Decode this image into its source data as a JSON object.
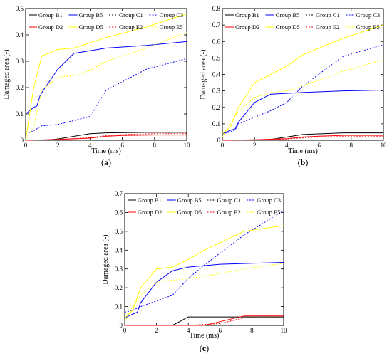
{
  "chart_data": [
    {
      "type": "line",
      "panel_label_open": "(",
      "panel_letter": "a",
      "panel_label_close": ")",
      "xlabel": "Time (ms)",
      "ylabel": "Damaged area (-)",
      "xlim": [
        0,
        10
      ],
      "ylim": [
        0,
        0.5
      ],
      "xticks": [
        0,
        2,
        4,
        6,
        8,
        10
      ],
      "yticks": [
        0,
        0.1,
        0.2,
        0.3,
        0.4,
        0.5
      ],
      "legend_position": "top",
      "series": [
        {
          "name": "Group B1",
          "color": "#000000",
          "dash": "solid",
          "x": [
            0,
            0.5,
            1,
            2,
            3,
            4,
            5,
            7.5,
            10
          ],
          "y": [
            0,
            0,
            0,
            0.005,
            0.015,
            0.025,
            0.028,
            0.03,
            0.03
          ]
        },
        {
          "name": "Group B5",
          "color": "#0000ff",
          "dash": "solid",
          "x": [
            0,
            0.3,
            0.5,
            0.7,
            0.9,
            1.1,
            2,
            3,
            5,
            7.5,
            10
          ],
          "y": [
            0.1,
            0.115,
            0.125,
            0.13,
            0.17,
            0.19,
            0.27,
            0.33,
            0.35,
            0.36,
            0.375
          ]
        },
        {
          "name": "Group C1",
          "color": "#000000",
          "dash": "dotted",
          "x": [
            0,
            2,
            4,
            6,
            8,
            10
          ],
          "y": [
            0,
            0,
            0,
            0,
            0,
            0
          ]
        },
        {
          "name": "Group C3",
          "color": "#0000ff",
          "dash": "dotted",
          "x": [
            0,
            0.3,
            0.6,
            1,
            2,
            3,
            4,
            5,
            7.5,
            10
          ],
          "y": [
            0.03,
            0.03,
            0.04,
            0.055,
            0.06,
            0.075,
            0.09,
            0.19,
            0.27,
            0.31
          ]
        },
        {
          "name": "Group D2",
          "color": "#ff0000",
          "dash": "solid",
          "x": [
            0,
            2,
            4,
            5,
            6,
            8,
            10
          ],
          "y": [
            0,
            0.003,
            0.008,
            0.015,
            0.018,
            0.02,
            0.02
          ]
        },
        {
          "name": "Group D5",
          "color": "#ffff00",
          "dash": "solid",
          "x": [
            0,
            0.5,
            1,
            2,
            3,
            5,
            7.5,
            10
          ],
          "y": [
            0,
            0.2,
            0.32,
            0.345,
            0.35,
            0.39,
            0.43,
            0.48
          ]
        },
        {
          "name": "Group E2",
          "color": "#ff0000",
          "dash": "dotted",
          "x": [
            0,
            2,
            4,
            5,
            6,
            8,
            10
          ],
          "y": [
            0,
            0.003,
            0.01,
            0.018,
            0.022,
            0.025,
            0.025
          ]
        },
        {
          "name": "Group E5",
          "color": "#ffff00",
          "dash": "dotted",
          "x": [
            0,
            0.5,
            1,
            2,
            3,
            4,
            5,
            7.5,
            10
          ],
          "y": [
            0,
            0.05,
            0.19,
            0.24,
            0.245,
            0.265,
            0.3,
            0.35,
            0.41
          ]
        }
      ]
    },
    {
      "type": "line",
      "panel_label_open": "(",
      "panel_letter": "b",
      "panel_label_close": ")",
      "xlabel": "Time (ms)",
      "ylabel": "Damaged area (-)",
      "xlim": [
        0,
        10
      ],
      "ylim": [
        0,
        0.8
      ],
      "xticks": [
        0,
        2,
        4,
        6,
        8,
        10
      ],
      "yticks": [
        0,
        0.1,
        0.2,
        0.3,
        0.4,
        0.5,
        0.6,
        0.7,
        0.8
      ],
      "legend_position": "top",
      "series": [
        {
          "name": "Group B1",
          "color": "#000000",
          "dash": "solid",
          "x": [
            0,
            1,
            2,
            3,
            4,
            5,
            7.5,
            10
          ],
          "y": [
            0,
            0,
            0,
            0.005,
            0.02,
            0.035,
            0.045,
            0.045
          ]
        },
        {
          "name": "Group B5",
          "color": "#0000ff",
          "dash": "solid",
          "x": [
            0,
            0.5,
            0.8,
            1,
            2,
            3,
            5,
            7.5,
            10
          ],
          "y": [
            0.04,
            0.06,
            0.07,
            0.11,
            0.23,
            0.28,
            0.29,
            0.3,
            0.305
          ]
        },
        {
          "name": "Group C1",
          "color": "#000000",
          "dash": "dotted",
          "x": [
            0,
            2,
            4,
            6,
            8,
            10
          ],
          "y": [
            0,
            0,
            0,
            0,
            0,
            0
          ]
        },
        {
          "name": "Group C3",
          "color": "#0000ff",
          "dash": "dotted",
          "x": [
            0,
            0.5,
            0.8,
            1,
            2,
            3,
            4,
            5,
            7.5,
            10
          ],
          "y": [
            0.04,
            0.05,
            0.065,
            0.1,
            0.14,
            0.18,
            0.23,
            0.33,
            0.51,
            0.58
          ]
        },
        {
          "name": "Group D2",
          "color": "#ff0000",
          "dash": "solid",
          "x": [
            0,
            2,
            4,
            5,
            6,
            7.5,
            10
          ],
          "y": [
            0,
            0.003,
            0.01,
            0.02,
            0.025,
            0.03,
            0.03
          ]
        },
        {
          "name": "Group D5",
          "color": "#ffff00",
          "dash": "solid",
          "x": [
            0,
            0.5,
            1,
            2,
            3,
            4,
            5,
            7.5,
            10
          ],
          "y": [
            0.04,
            0.08,
            0.2,
            0.35,
            0.4,
            0.45,
            0.52,
            0.62,
            0.7
          ]
        },
        {
          "name": "Group E2",
          "color": "#ff0000",
          "dash": "dotted",
          "x": [
            0,
            2,
            4,
            5,
            6,
            7.5,
            10
          ],
          "y": [
            0,
            0.002,
            0.008,
            0.015,
            0.02,
            0.022,
            0.022
          ]
        },
        {
          "name": "Group E5",
          "color": "#ffff00",
          "dash": "dotted",
          "x": [
            0,
            0.5,
            1,
            2,
            3,
            4,
            5,
            7.5,
            10
          ],
          "y": [
            0.02,
            0.1,
            0.18,
            0.26,
            0.29,
            0.3,
            0.33,
            0.42,
            0.49
          ]
        }
      ]
    },
    {
      "type": "line",
      "panel_label_open": "(",
      "panel_letter": "c",
      "panel_label_close": ")",
      "xlabel": "Time (ms)",
      "ylabel": "Damaged area (-)",
      "xlim": [
        0,
        10
      ],
      "ylim": [
        0,
        0.7
      ],
      "xticks": [
        0,
        2,
        4,
        6,
        8,
        10
      ],
      "yticks": [
        0,
        0.1,
        0.2,
        0.3,
        0.4,
        0.5,
        0.6,
        0.7
      ],
      "legend_position": "top",
      "series": [
        {
          "name": "Group B1",
          "color": "#000000",
          "dash": "solid",
          "x": [
            0,
            3,
            4,
            6,
            8,
            10
          ],
          "y": [
            0,
            0,
            0.045,
            0.045,
            0.045,
            0.045
          ]
        },
        {
          "name": "Group B5",
          "color": "#0000ff",
          "dash": "solid",
          "x": [
            0,
            0.5,
            0.8,
            1,
            2,
            3,
            4,
            6,
            8,
            10
          ],
          "y": [
            0.04,
            0.06,
            0.07,
            0.12,
            0.23,
            0.29,
            0.31,
            0.325,
            0.33,
            0.335
          ]
        },
        {
          "name": "Group C1",
          "color": "#000000",
          "dash": "dotted",
          "x": [
            0,
            2,
            4,
            6,
            8,
            10
          ],
          "y": [
            0,
            0,
            0,
            0,
            0,
            0
          ]
        },
        {
          "name": "Group C3",
          "color": "#0000ff",
          "dash": "dotted",
          "x": [
            0,
            0.5,
            1,
            2,
            3,
            4,
            5,
            7.5,
            10
          ],
          "y": [
            0.07,
            0.08,
            0.1,
            0.13,
            0.16,
            0.25,
            0.32,
            0.48,
            0.61
          ]
        },
        {
          "name": "Group D2",
          "color": "#ff0000",
          "dash": "solid",
          "x": [
            0,
            5,
            6,
            7.5,
            8,
            10
          ],
          "y": [
            0,
            0,
            0.02,
            0.05,
            0.05,
            0.05
          ]
        },
        {
          "name": "Group D5",
          "color": "#ffff00",
          "dash": "solid",
          "x": [
            0,
            0.5,
            1,
            2,
            3,
            4,
            5,
            7.5,
            10
          ],
          "y": [
            0.04,
            0.08,
            0.2,
            0.3,
            0.31,
            0.35,
            0.4,
            0.5,
            0.53
          ]
        },
        {
          "name": "Group E2",
          "color": "#ff0000",
          "dash": "dotted",
          "x": [
            0,
            2,
            4,
            6,
            7.5,
            10
          ],
          "y": [
            0,
            0,
            0,
            0.01,
            0.04,
            0.04
          ]
        },
        {
          "name": "Group E5",
          "color": "#ffff00",
          "dash": "dotted",
          "x": [
            0,
            0.5,
            1,
            2,
            3,
            4,
            5,
            7.5,
            10
          ],
          "y": [
            0.02,
            0.1,
            0.16,
            0.23,
            0.24,
            0.25,
            0.26,
            0.3,
            0.33
          ]
        }
      ]
    }
  ]
}
